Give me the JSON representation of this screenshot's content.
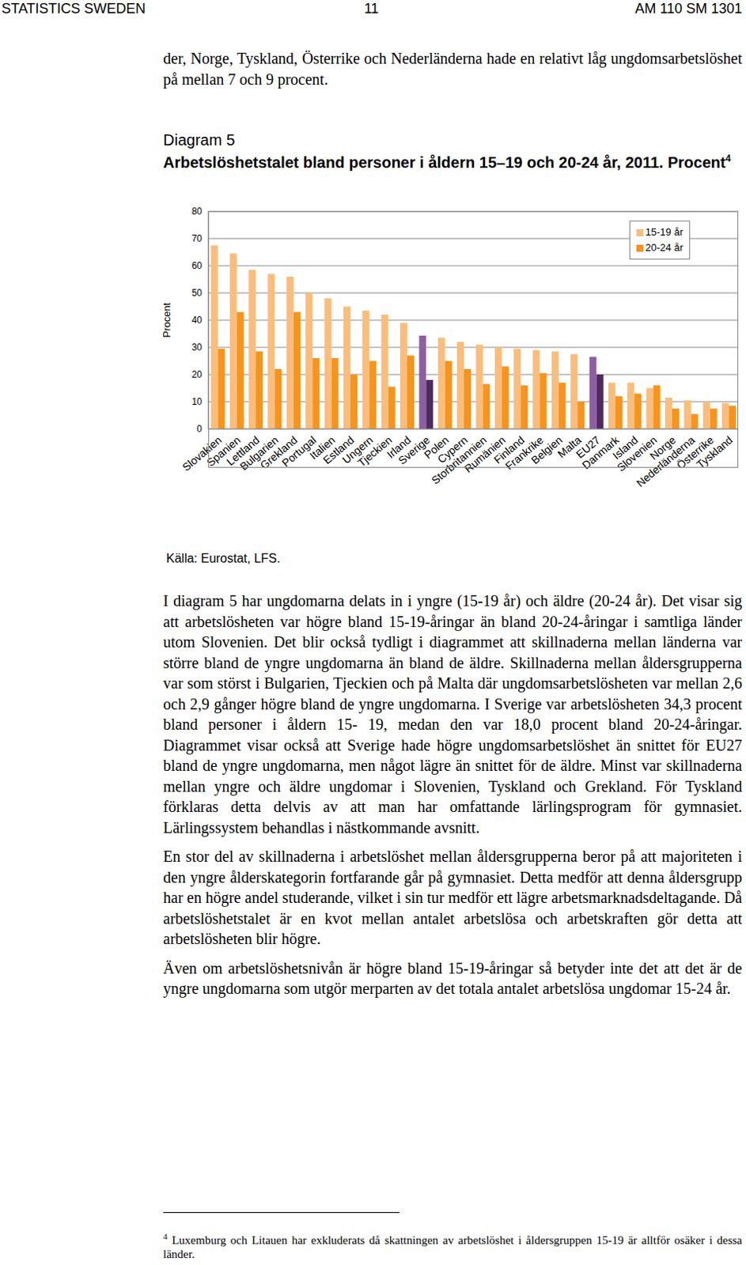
{
  "header": {
    "left": "STATISTICS SWEDEN",
    "page": "11",
    "right": "AM 110 SM 1301"
  },
  "intro": "der, Norge, Tyskland, Österrike och Nederländerna hade en relativt låg ungdomsarbetslöshet på mellan 7 och 9 procent.",
  "figure": {
    "label": "Diagram 5",
    "title": "Arbetslöshetstalet bland personer i åldern 15–19 och 20-24 år, 2011. Procent",
    "footnote_ref": "4",
    "source": "Källa: Eurostat, LFS."
  },
  "chart_data": {
    "type": "bar",
    "y_label": "Procent",
    "categories": [
      "Slovakien",
      "Spanien",
      "Lettland",
      "Bulgarien",
      "Grekland",
      "Portugal",
      "Italien",
      "Estland",
      "Ungern",
      "Tjeckien",
      "Irland",
      "Sverige",
      "Polen",
      "Cypern",
      "Storbritannien",
      "Rumänien",
      "Finland",
      "Frankrike",
      "Belgien",
      "Malta",
      "EU27",
      "Danmark",
      "Island",
      "Slovenien",
      "Norge",
      "Nederländerna",
      "Österrike",
      "Tyskland"
    ],
    "series": [
      {
        "name": "15-19 år",
        "color": "#fbbd7c",
        "colors": [
          "#fbbd7c",
          "#fbbd7c",
          "#fbbd7c",
          "#fbbd7c",
          "#fbbd7c",
          "#fbbd7c",
          "#fbbd7c",
          "#fbbd7c",
          "#fbbd7c",
          "#fbbd7c",
          "#fbbd7c",
          "#8e5ea2",
          "#fbbd7c",
          "#fbbd7c",
          "#fbbd7c",
          "#fbbd7c",
          "#fbbd7c",
          "#fbbd7c",
          "#fbbd7c",
          "#fbbd7c",
          "#8e5ea2",
          "#fbbd7c",
          "#fbbd7c",
          "#fbbd7c",
          "#fbbd7c",
          "#fbbd7c",
          "#fbbd7c",
          "#fbbd7c"
        ],
        "values": [
          67.5,
          64.5,
          58.5,
          57,
          56,
          50,
          48,
          45,
          43.5,
          42,
          39,
          34.3,
          33.5,
          32,
          31,
          30,
          29.5,
          29,
          28.5,
          27.5,
          26.5,
          17,
          17,
          15,
          11.5,
          10.5,
          10,
          9.5
        ]
      },
      {
        "name": "20-24 år",
        "color": "#f7941d",
        "colors": [
          "#f7941d",
          "#f7941d",
          "#f7941d",
          "#f7941d",
          "#f7941d",
          "#f7941d",
          "#f7941d",
          "#f7941d",
          "#f7941d",
          "#f7941d",
          "#f7941d",
          "#4e2a5e",
          "#f7941d",
          "#f7941d",
          "#f7941d",
          "#f7941d",
          "#f7941d",
          "#f7941d",
          "#f7941d",
          "#f7941d",
          "#4e2a5e",
          "#f7941d",
          "#f7941d",
          "#f7941d",
          "#f7941d",
          "#f7941d",
          "#f7941d",
          "#f7941d"
        ],
        "values": [
          29.5,
          43,
          28.5,
          22,
          43,
          26,
          26,
          20,
          25,
          15.5,
          27,
          18.0,
          25,
          22,
          16.5,
          23,
          16,
          20.5,
          17,
          10,
          20,
          12,
          13,
          16,
          7.5,
          5.5,
          7.5,
          8.5
        ]
      }
    ],
    "ylim": [
      0,
      80
    ],
    "yticks": [
      0,
      10,
      20,
      30,
      40,
      50,
      60,
      70,
      80
    ],
    "grid": true,
    "legend": "upper right"
  },
  "paragraphs": [
    "I diagram 5 har ungdomarna delats in i yngre (15-19 år) och äldre (20-24 år). Det visar sig att arbetslösheten var högre bland 15-19-åringar än bland 20-24-åringar i samtliga länder utom Slovenien. Det blir också tydligt i diagrammet att skillnaderna mellan länderna var större bland de yngre ungdomarna än bland de äldre. Skillnaderna mellan åldersgrupperna var som störst i Bulgarien, Tjeckien och på Malta där ungdomsarbetslösheten var mellan 2,6 och 2,9 gånger högre bland de yngre ungdomarna. I Sverige var arbetslösheten 34,3 procent bland personer i åldern 15- 19, medan den var 18,0 procent bland 20-24-åringar. Diagrammet visar också att Sverige hade högre ungdomsarbetslöshet än snittet för EU27 bland de yngre ungdomarna, men något lägre än snittet för de äldre. Minst var skillnaderna mellan yngre och äldre ungdomar i Slovenien, Tyskland och Grekland. För Tyskland förklaras detta delvis av att man har omfattande lärlingsprogram för gymnasiet. Lärlingssystem behandlas i nästkommande avsnitt.",
    "En stor del av skillnaderna i arbetslöshet mellan åldersgrupperna beror på att majoriteten i den yngre ålderskategorin fortfarande går på gymnasiet. Detta medför att denna åldersgrupp har en högre andel studerande, vilket i sin tur medför ett lägre arbetsmarknadsdeltagande. Då arbetslöshetstalet är en kvot mellan antalet arbetslösa och arbetskraften gör detta att arbetslösheten blir högre.",
    "Även om arbetslöshetsnivån är högre bland 15-19-åringar så betyder inte det att det är de yngre ungdomarna som utgör merparten av det totala antalet arbetslösa ungdomar 15-24 år."
  ],
  "footnote": {
    "ref": "4",
    "text": "Luxemburg och Litauen har exkluderats då skattningen av arbetslöshet i åldersgruppen 15-19 är alltför osäker i dessa länder."
  }
}
